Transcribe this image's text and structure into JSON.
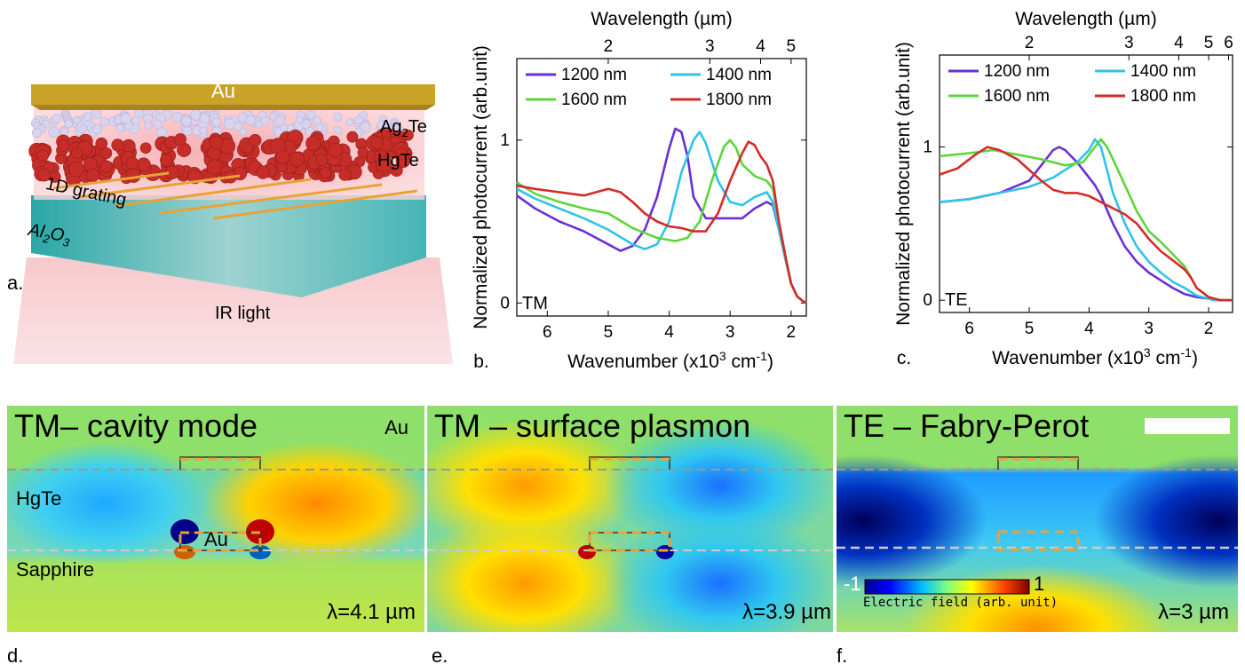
{
  "schematic": {
    "label_au": "Au",
    "label_ag2te": "Ag",
    "label_ag2te_sub": "2",
    "label_ag2te_end": "Te",
    "label_hgte": "HgTe",
    "label_grating": "1D grating",
    "label_al2o3_a": "Al",
    "label_al2o3_sub1": "2",
    "label_al2o3_b": "O",
    "label_al2o3_sub2": "3",
    "label_light": "IR light",
    "panel_letter": "a.",
    "colors": {
      "gold": "#c9a227",
      "hgte": "#c8302a",
      "sapphire": "#3fb0b0",
      "light": "#f2b7bb"
    }
  },
  "chart_data": [
    {
      "type": "line",
      "panel_letter": "b.",
      "mode_label": "TM",
      "xlabel": "Wavenumber (x10",
      "xlabel_sup": "3",
      "xlabel_end": " cm",
      "xlabel_sup2": "-1",
      "xlabel_close": ")",
      "ylabel": "Normalized photocurrent (arb.unit)",
      "top_axis_label": "Wavelength (µm)",
      "top_ticks": [
        "2",
        "3",
        "4",
        "5"
      ],
      "top_tick_values": [
        2,
        3,
        4,
        5
      ],
      "x_ticks": [
        "6",
        "5",
        "4",
        "3",
        "2"
      ],
      "x_tick_values": [
        6,
        5,
        4,
        3,
        2
      ],
      "y_ticks": [
        "0",
        "1"
      ],
      "y_tick_values": [
        0,
        1
      ],
      "xlim": [
        6.5,
        1.75
      ],
      "ylim": [
        -0.08,
        1.5
      ],
      "legend_placement": "top",
      "series": [
        {
          "name": "1200 nm",
          "color": "#6a2fd6",
          "x": [
            6.5,
            6.2,
            5.8,
            5.4,
            5.0,
            4.8,
            4.6,
            4.4,
            4.2,
            4.0,
            3.9,
            3.8,
            3.7,
            3.6,
            3.4,
            3.2,
            3.0,
            2.8,
            2.6,
            2.4,
            2.3,
            2.2,
            2.1,
            2.0,
            1.9,
            1.8,
            1.75
          ],
          "y": [
            0.66,
            0.58,
            0.5,
            0.44,
            0.36,
            0.32,
            0.35,
            0.45,
            0.65,
            0.95,
            1.07,
            1.05,
            0.9,
            0.65,
            0.52,
            0.52,
            0.52,
            0.52,
            0.58,
            0.62,
            0.6,
            0.45,
            0.28,
            0.12,
            0.04,
            0.01,
            0.0
          ]
        },
        {
          "name": "1400 nm",
          "color": "#2fc3e8",
          "x": [
            6.5,
            6.2,
            5.8,
            5.4,
            5.0,
            4.6,
            4.4,
            4.2,
            4.0,
            3.8,
            3.6,
            3.5,
            3.4,
            3.2,
            3.0,
            2.8,
            2.6,
            2.4,
            2.3,
            2.2,
            2.1,
            2.0,
            1.9,
            1.8,
            1.75
          ],
          "y": [
            0.7,
            0.64,
            0.58,
            0.52,
            0.45,
            0.36,
            0.33,
            0.36,
            0.5,
            0.8,
            1.0,
            1.05,
            0.98,
            0.75,
            0.62,
            0.6,
            0.65,
            0.68,
            0.62,
            0.45,
            0.28,
            0.12,
            0.04,
            0.01,
            0.0
          ]
        },
        {
          "name": "1600 nm",
          "color": "#5cd63b",
          "x": [
            6.5,
            6.2,
            5.8,
            5.4,
            5.0,
            4.6,
            4.2,
            3.9,
            3.7,
            3.5,
            3.3,
            3.1,
            3.0,
            2.9,
            2.8,
            2.6,
            2.4,
            2.3,
            2.2,
            2.1,
            2.0,
            1.9,
            1.8,
            1.75
          ],
          "y": [
            0.74,
            0.67,
            0.62,
            0.58,
            0.55,
            0.46,
            0.4,
            0.38,
            0.4,
            0.5,
            0.75,
            0.96,
            1.0,
            0.95,
            0.85,
            0.78,
            0.75,
            0.7,
            0.5,
            0.3,
            0.12,
            0.04,
            0.01,
            0.0
          ]
        },
        {
          "name": "1800 nm",
          "color": "#d62a2a",
          "x": [
            6.5,
            6.2,
            5.8,
            5.4,
            5.2,
            5.0,
            4.8,
            4.6,
            4.4,
            4.2,
            4.0,
            3.8,
            3.6,
            3.4,
            3.2,
            3.0,
            2.8,
            2.7,
            2.6,
            2.5,
            2.4,
            2.3,
            2.2,
            2.1,
            2.0,
            1.9,
            1.8,
            1.75
          ],
          "y": [
            0.72,
            0.7,
            0.68,
            0.66,
            0.68,
            0.7,
            0.68,
            0.62,
            0.55,
            0.5,
            0.47,
            0.46,
            0.44,
            0.44,
            0.55,
            0.75,
            0.92,
            0.99,
            0.97,
            0.9,
            0.85,
            0.75,
            0.5,
            0.3,
            0.12,
            0.04,
            0.01,
            0.0
          ]
        }
      ]
    },
    {
      "type": "line",
      "panel_letter": "c.",
      "mode_label": "TE",
      "xlabel": "Wavenumber (x10",
      "xlabel_sup": "3",
      "xlabel_end": " cm",
      "xlabel_sup2": "-1",
      "xlabel_close": ")",
      "ylabel": "Normalized photocurrent (arb.unit)",
      "top_axis_label": "Wavelength (µm)",
      "top_ticks": [
        "2",
        "3",
        "4",
        "5",
        "6"
      ],
      "top_tick_values": [
        2,
        3,
        4,
        5,
        6
      ],
      "x_ticks": [
        "6",
        "5",
        "4",
        "3",
        "2"
      ],
      "x_tick_values": [
        6,
        5,
        4,
        3,
        2
      ],
      "y_ticks": [
        "0",
        "1"
      ],
      "y_tick_values": [
        0,
        1
      ],
      "xlim": [
        6.5,
        1.6
      ],
      "ylim": [
        -0.08,
        1.6
      ],
      "legend_placement": "top",
      "series": [
        {
          "name": "1200 nm",
          "color": "#6a2fd6",
          "x": [
            6.5,
            6.0,
            5.5,
            5.0,
            4.8,
            4.6,
            4.5,
            4.4,
            4.2,
            4.0,
            3.9,
            3.8,
            3.6,
            3.4,
            3.2,
            3.0,
            2.8,
            2.6,
            2.4,
            2.2,
            2.0,
            1.9,
            1.8,
            1.7,
            1.6
          ],
          "y": [
            0.64,
            0.66,
            0.7,
            0.78,
            0.88,
            0.98,
            1.0,
            0.98,
            0.9,
            0.8,
            0.75,
            0.68,
            0.5,
            0.35,
            0.25,
            0.18,
            0.13,
            0.08,
            0.04,
            0.02,
            0.01,
            0.0,
            0.0,
            0.0,
            0.0
          ]
        },
        {
          "name": "1400 nm",
          "color": "#2fc3e8",
          "x": [
            6.5,
            6.0,
            5.5,
            5.0,
            4.6,
            4.2,
            4.0,
            3.9,
            3.8,
            3.7,
            3.6,
            3.4,
            3.2,
            3.0,
            2.8,
            2.6,
            2.4,
            2.2,
            2.0,
            1.9,
            1.8,
            1.7,
            1.6
          ],
          "y": [
            0.64,
            0.66,
            0.7,
            0.74,
            0.8,
            0.9,
            0.98,
            1.05,
            1.0,
            0.85,
            0.7,
            0.5,
            0.35,
            0.25,
            0.18,
            0.12,
            0.08,
            0.03,
            0.01,
            0.0,
            0.0,
            0.0,
            0.0
          ]
        },
        {
          "name": "1600 nm",
          "color": "#5cd63b",
          "x": [
            6.5,
            6.0,
            5.6,
            5.2,
            4.8,
            4.4,
            4.1,
            3.9,
            3.8,
            3.7,
            3.6,
            3.4,
            3.2,
            3.0,
            2.8,
            2.6,
            2.4,
            2.3,
            2.2,
            2.0,
            1.9,
            1.8,
            1.7,
            1.6
          ],
          "y": [
            0.94,
            0.96,
            0.98,
            0.95,
            0.92,
            0.88,
            0.9,
            1.0,
            1.05,
            1.0,
            0.92,
            0.75,
            0.58,
            0.45,
            0.38,
            0.3,
            0.22,
            0.15,
            0.08,
            0.02,
            0.01,
            0.0,
            0.0,
            0.0
          ]
        },
        {
          "name": "1800 nm",
          "color": "#d62a2a",
          "x": [
            6.5,
            6.2,
            5.9,
            5.7,
            5.5,
            5.2,
            5.0,
            4.8,
            4.6,
            4.4,
            4.2,
            4.0,
            3.8,
            3.6,
            3.4,
            3.2,
            3.0,
            2.8,
            2.6,
            2.4,
            2.3,
            2.2,
            2.0,
            1.9,
            1.8,
            1.7,
            1.6
          ],
          "y": [
            0.82,
            0.86,
            0.95,
            1.0,
            0.98,
            0.92,
            0.85,
            0.78,
            0.72,
            0.7,
            0.7,
            0.68,
            0.64,
            0.6,
            0.56,
            0.5,
            0.4,
            0.32,
            0.26,
            0.2,
            0.15,
            0.08,
            0.02,
            0.01,
            0.0,
            0.0,
            0.0
          ]
        }
      ]
    }
  ],
  "field_maps": [
    {
      "panel_letter": "d.",
      "title": "TM– cavity mode",
      "label_top_right": "Au",
      "label_mid": "HgTe",
      "label_center": "Au",
      "label_bottom": "Sapphire",
      "wavelength": "λ=4.1 µm"
    },
    {
      "panel_letter": "e.",
      "title": "TM – surface plasmon",
      "wavelength": "λ=3.9 µm"
    },
    {
      "panel_letter": "f.",
      "title": "TE – Fabry-Perot",
      "wavelength": "λ=3 µm",
      "colorbar": {
        "min": "-1",
        "max": "1",
        "label": "Electric field (arb. unit)"
      }
    }
  ]
}
